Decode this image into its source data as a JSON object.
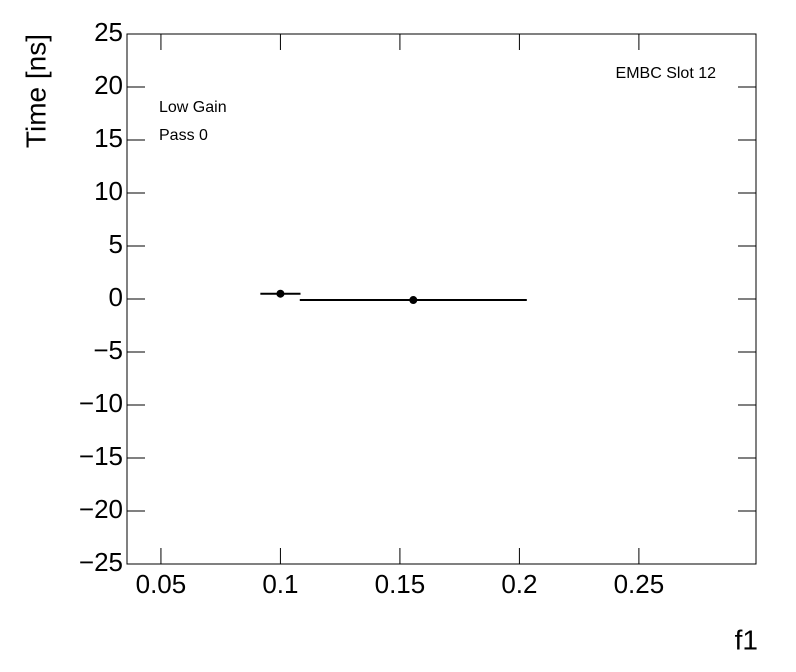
{
  "chart_data": {
    "type": "scatter",
    "x_label": "f1",
    "y_label": "Time [ns]",
    "annotations": [
      "EMBC Slot 12",
      "Low Gain",
      "Pass 0"
    ],
    "series": [
      {
        "name": "Time",
        "color": "#000000",
        "x": [
          0.1,
          0.1556
        ],
        "xerr": [
          0.0084,
          0.0475
        ],
        "values": [
          0.5,
          -0.1
        ]
      }
    ],
    "xlim": [
      0.0358,
      0.299
    ],
    "xticks": [
      0.05,
      0.1,
      0.15,
      0.2,
      0.25
    ],
    "ylim": [
      -25,
      25
    ],
    "yticks": [
      {
        "value": -25,
        "label": "−25"
      },
      {
        "value": -20,
        "label": "−20"
      },
      {
        "value": -15,
        "label": "−15"
      },
      {
        "value": -10,
        "label": "−10"
      },
      {
        "value": -5,
        "label": "−5"
      },
      0,
      5,
      10,
      15,
      20,
      25
    ]
  }
}
